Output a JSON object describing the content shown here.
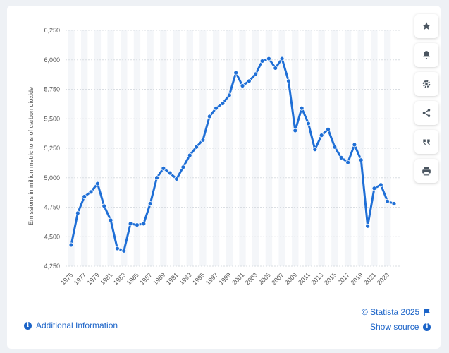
{
  "chart_data": {
    "type": "line",
    "ylabel": "Emissions in million metric tons of carbon dioxide",
    "xlabel": "",
    "ylim": [
      4250,
      6250
    ],
    "yticks": [
      4250,
      4500,
      4750,
      5000,
      5250,
      5500,
      5750,
      6000,
      6250
    ],
    "ytick_labels": [
      "4,250",
      "4,500",
      "4,750",
      "5,000",
      "5,250",
      "5,500",
      "5,750",
      "6,000",
      "6,250"
    ],
    "xlim": [
      1975,
      2024
    ],
    "xticks": [
      1975,
      1977,
      1979,
      1981,
      1983,
      1985,
      1987,
      1989,
      1991,
      1993,
      1995,
      1997,
      1999,
      2001,
      2003,
      2005,
      2007,
      2009,
      2011,
      2013,
      2015,
      2017,
      2019,
      2021,
      2023
    ],
    "grid": true,
    "color": "#1f6fd6",
    "series": [
      {
        "x": [
          1975,
          1976,
          1977,
          1978,
          1979,
          1980,
          1981,
          1982,
          1983,
          1984,
          1985,
          1986,
          1987,
          1988,
          1989,
          1990,
          1991,
          1992,
          1993,
          1994,
          1995,
          1996,
          1997,
          1998,
          1999,
          2000,
          2001,
          2002,
          2003,
          2004,
          2005,
          2006,
          2007,
          2008,
          2009,
          2010,
          2011,
          2012,
          2013,
          2014,
          2015,
          2016,
          2017,
          2018,
          2019,
          2020,
          2021,
          2022,
          2023,
          2024
        ],
        "values": [
          4430,
          4700,
          4840,
          4880,
          4950,
          4760,
          4640,
          4400,
          4380,
          4610,
          4600,
          4610,
          4780,
          5000,
          5080,
          5040,
          4990,
          5090,
          5190,
          5260,
          5320,
          5520,
          5590,
          5630,
          5700,
          5890,
          5780,
          5820,
          5880,
          5990,
          6010,
          5930,
          6010,
          5820,
          5400,
          5590,
          5460,
          5240,
          5360,
          5410,
          5260,
          5170,
          5130,
          5280,
          5150,
          4590,
          4910,
          4940,
          4800,
          4780
        ]
      }
    ]
  },
  "toolbar": {
    "icons": [
      "star-icon",
      "bell-icon",
      "gear-icon",
      "share-icon",
      "quote-icon",
      "print-icon"
    ]
  },
  "footer": {
    "copyright": "© Statista 2025",
    "additional_info": "Additional Information",
    "show_source": "Show source"
  }
}
